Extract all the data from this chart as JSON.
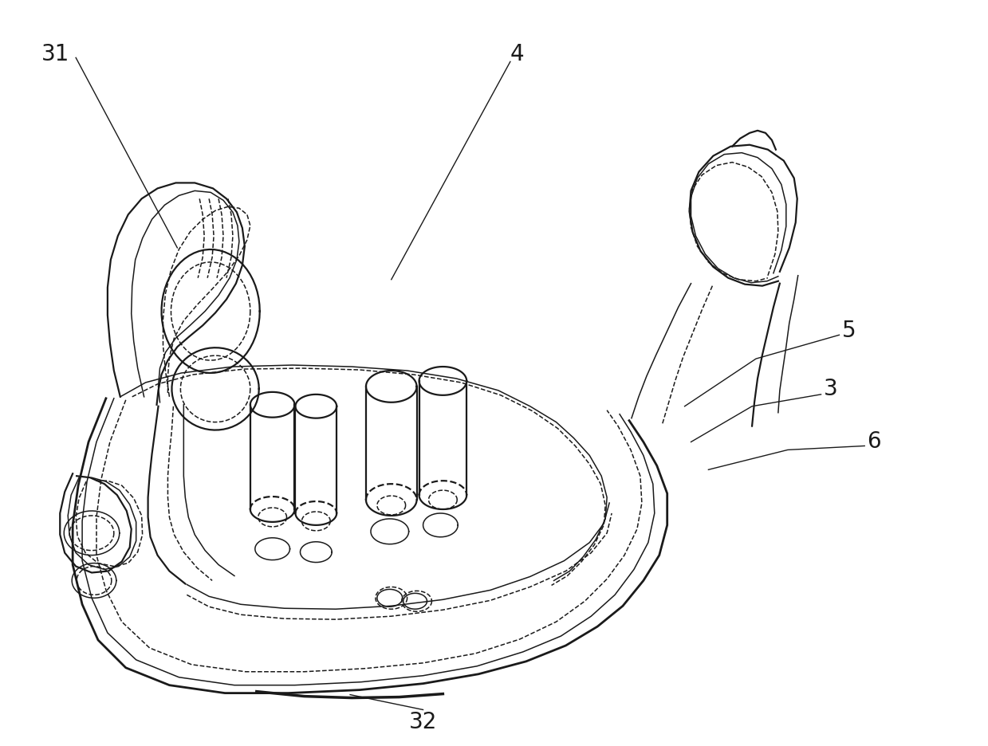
{
  "background_color": "#ffffff",
  "line_color": "#1a1a1a",
  "dashed_color": "#1a1a1a",
  "fig_width": 12.39,
  "fig_height": 9.36,
  "dpi": 100,
  "label_fontsize": 20,
  "lw_main": 1.6,
  "lw_thin": 1.1,
  "lw_thick": 2.0
}
